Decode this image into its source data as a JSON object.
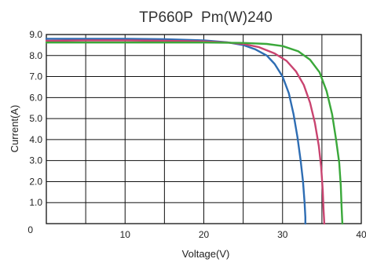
{
  "chart_data": {
    "type": "line",
    "title": "TP660P  Pm(W)240",
    "xlabel": "Voltage(V)",
    "ylabel": "Current(A)",
    "xlim": [
      0,
      40
    ],
    "ylim": [
      0,
      9
    ],
    "grid": true,
    "x_ticks": [
      10,
      20,
      30,
      40
    ],
    "x_tick_labels": [
      "10",
      "20",
      "30",
      "40"
    ],
    "y_ticks": [
      1,
      2,
      3,
      4,
      5,
      6,
      7,
      8,
      9
    ],
    "y_tick_labels": [
      "1.0",
      "2.0",
      "3.0",
      "4.0",
      "5.0",
      "6.0",
      "7.0",
      "8.0",
      "9.0"
    ],
    "origin_label": "0",
    "series": [
      {
        "color": "#2e6db3",
        "x": [
          0,
          5,
          10,
          15,
          20,
          23,
          25,
          26.5,
          28,
          29,
          30,
          30.8,
          31.4,
          31.9,
          32.3,
          32.6,
          32.8,
          32.9,
          32.9
        ],
        "y": [
          8.8,
          8.8,
          8.8,
          8.78,
          8.72,
          8.63,
          8.5,
          8.3,
          8.0,
          7.6,
          7.0,
          6.2,
          5.2,
          4.1,
          3.0,
          2.0,
          1.0,
          0.3,
          0
        ]
      },
      {
        "color": "#c94470",
        "x": [
          0,
          5,
          10,
          15,
          20,
          23,
          25,
          27,
          29,
          30.5,
          31.7,
          32.7,
          33.5,
          34.1,
          34.6,
          34.9,
          35.1,
          35.2,
          35.3
        ],
        "y": [
          8.7,
          8.72,
          8.72,
          8.7,
          8.67,
          8.62,
          8.55,
          8.4,
          8.1,
          7.75,
          7.25,
          6.6,
          5.75,
          4.8,
          3.7,
          2.7,
          1.6,
          0.7,
          0
        ]
      },
      {
        "color": "#3aa83a",
        "x": [
          0,
          5,
          10,
          15,
          20,
          25,
          28,
          30,
          32,
          33.5,
          34.7,
          35.6,
          36.3,
          36.8,
          37.2,
          37.4,
          37.5,
          37.6
        ],
        "y": [
          8.62,
          8.62,
          8.62,
          8.62,
          8.62,
          8.6,
          8.55,
          8.45,
          8.2,
          7.8,
          7.2,
          6.3,
          5.2,
          4.0,
          2.9,
          1.8,
          0.8,
          0
        ]
      }
    ]
  }
}
